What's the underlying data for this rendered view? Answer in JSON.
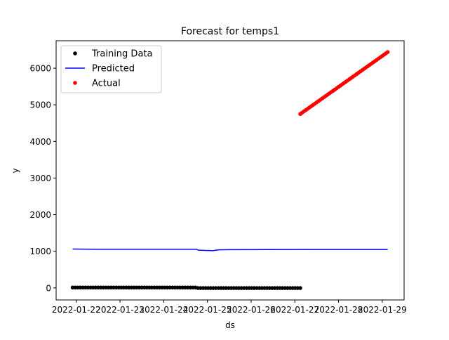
{
  "chart_data": {
    "type": "scatter",
    "title": "Forecast for temps1",
    "xlabel": "ds",
    "ylabel": "y",
    "xlim": [
      "2022-01-21 12:55",
      "2022-01-29 12:00"
    ],
    "ylim": [
      -330,
      6750
    ],
    "grid": false,
    "legend_position": "top-left",
    "x_tick_labels": [
      "2022-01-22",
      "2022-01-23",
      "2022-01-24",
      "2022-01-25",
      "2022-01-26",
      "2022-01-27",
      "2022-01-28",
      "2022-01-29"
    ],
    "y_ticks": [
      0,
      1000,
      2000,
      3000,
      4000,
      5000,
      6000
    ],
    "series": [
      {
        "name": "Training Data",
        "kind": "scatter",
        "color": "#000000",
        "x_start": "2022-01-21 22:00",
        "x_end": "2022-01-27 03:00",
        "count": 90,
        "segments": [
          {
            "from": "2022-01-21 22:00",
            "to": "2022-01-24 18:00",
            "y": 10
          },
          {
            "from": "2022-01-24 19:00",
            "to": "2022-01-27 03:00",
            "y": -5
          }
        ]
      },
      {
        "name": "Predicted",
        "kind": "line",
        "color": "#0000ff",
        "points": [
          [
            "2022-01-21 22:00",
            1060
          ],
          [
            "2022-01-22 12:00",
            1055
          ],
          [
            "2022-01-24 18:00",
            1055
          ],
          [
            "2022-01-24 19:00",
            1030
          ],
          [
            "2022-01-25 03:00",
            1015
          ],
          [
            "2022-01-25 06:00",
            1040
          ],
          [
            "2022-01-25 12:00",
            1045
          ],
          [
            "2022-01-27 12:00",
            1048
          ],
          [
            "2022-01-29 03:00",
            1050
          ]
        ]
      },
      {
        "name": "Actual",
        "kind": "scatter",
        "color": "#ff0000",
        "x_start": "2022-01-27 03:00",
        "x_end": "2022-01-29 03:00",
        "y_start": 4750,
        "y_end": 6440,
        "count": 49
      }
    ]
  }
}
